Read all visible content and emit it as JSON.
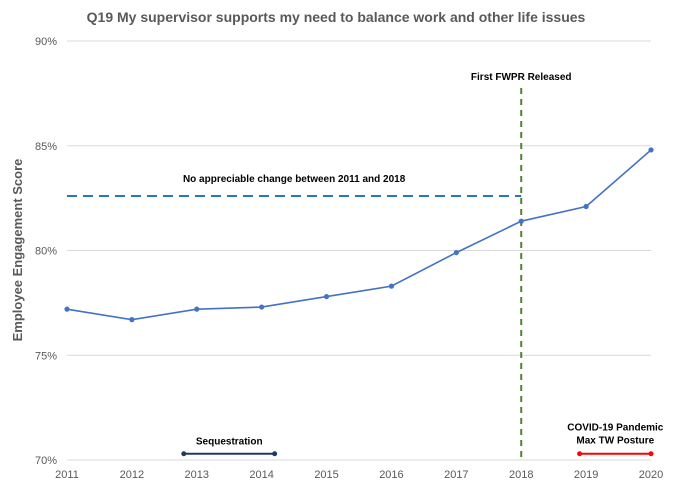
{
  "chart_data": {
    "type": "line",
    "title": "Q19 My supervisor supports  my need to balance work and other life issues",
    "xlabel": "",
    "ylabel": "Employee Engagement Score",
    "x": [
      "2011",
      "2012",
      "2013",
      "2014",
      "2015",
      "2016",
      "2017",
      "2018",
      "2019",
      "2020"
    ],
    "series": [
      {
        "values": [
          77.2,
          76.7,
          77.2,
          77.3,
          77.8,
          78.3,
          79.9,
          81.4,
          82.1,
          84.8
        ]
      }
    ],
    "ylim": [
      70,
      90
    ],
    "yticks": [
      70,
      75,
      80,
      85,
      90
    ],
    "ytick_labels": [
      "70%",
      "75%",
      "80%",
      "85%",
      "90%"
    ],
    "grid": "horizontal",
    "legend": "none",
    "colors": {
      "series": "#4472c4",
      "plateau_line": "#2e75b6",
      "fwpr_line": "#548235",
      "sequestration": "#1f3864",
      "covid": "#ff0000",
      "grid": "#d9d9d9",
      "text": "#595959"
    },
    "annotations": {
      "plateau": {
        "text": "No appreciable change between 2011 and 2018",
        "y": 82.6,
        "x_start": "2011",
        "x_end": "2018"
      },
      "fwpr": {
        "text": "First FWPR Released",
        "x": "2018"
      },
      "sequestration": {
        "text": "Sequestration",
        "x_start": 2012.8,
        "x_end": 2014.2,
        "y": 70.3
      },
      "covid": {
        "line1": "COVID-19 Pandemic",
        "line2": "Max TW Posture",
        "x_start": 2018.9,
        "x_end": 2020,
        "y": 70.3
      }
    }
  }
}
